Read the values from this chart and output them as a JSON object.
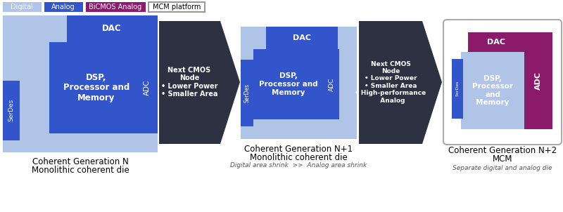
{
  "background_color": "#ffffff",
  "legend_items": [
    {
      "label": "Digital",
      "color": "#b0c4e8",
      "border": "#b0c4e8"
    },
    {
      "label": "Analog",
      "color": "#3355cc",
      "border": "#3355cc"
    },
    {
      "label": "BiCMOS Analog",
      "color": "#8b1a6b",
      "border": "#8b1a6b"
    },
    {
      "label": "MCM platform",
      "color": "#ffffff",
      "border": "#999999"
    }
  ],
  "light_blue": "#b0c4e8",
  "med_blue": "#7b9fd4",
  "dark_blue": "#3355cc",
  "royal_blue": "#3355cc",
  "purple": "#8b1a6b",
  "dark_arrow": "#2d3142",
  "gen1_label1": "Coherent Generation N",
  "gen1_label2": "Monolithic coherent die",
  "gen2_label1": "Coherent Generation N+1",
  "gen2_label2": "Monolithic coherent die",
  "gen2_label3": "Digital area shrink  >>  Analog area shrink",
  "gen3_label1": "Coherent Generation N+2",
  "gen3_label2": "MCM",
  "gen3_label3": "Separate digital and analog die",
  "arrow1_text": "Next CMOS\nNode\n• Lower Power\n• Smaller Area",
  "arrow2_text": "Next CMOS\nNode\n• Lower Power\n• Smaller Area\n• High-performance\n  Analog"
}
